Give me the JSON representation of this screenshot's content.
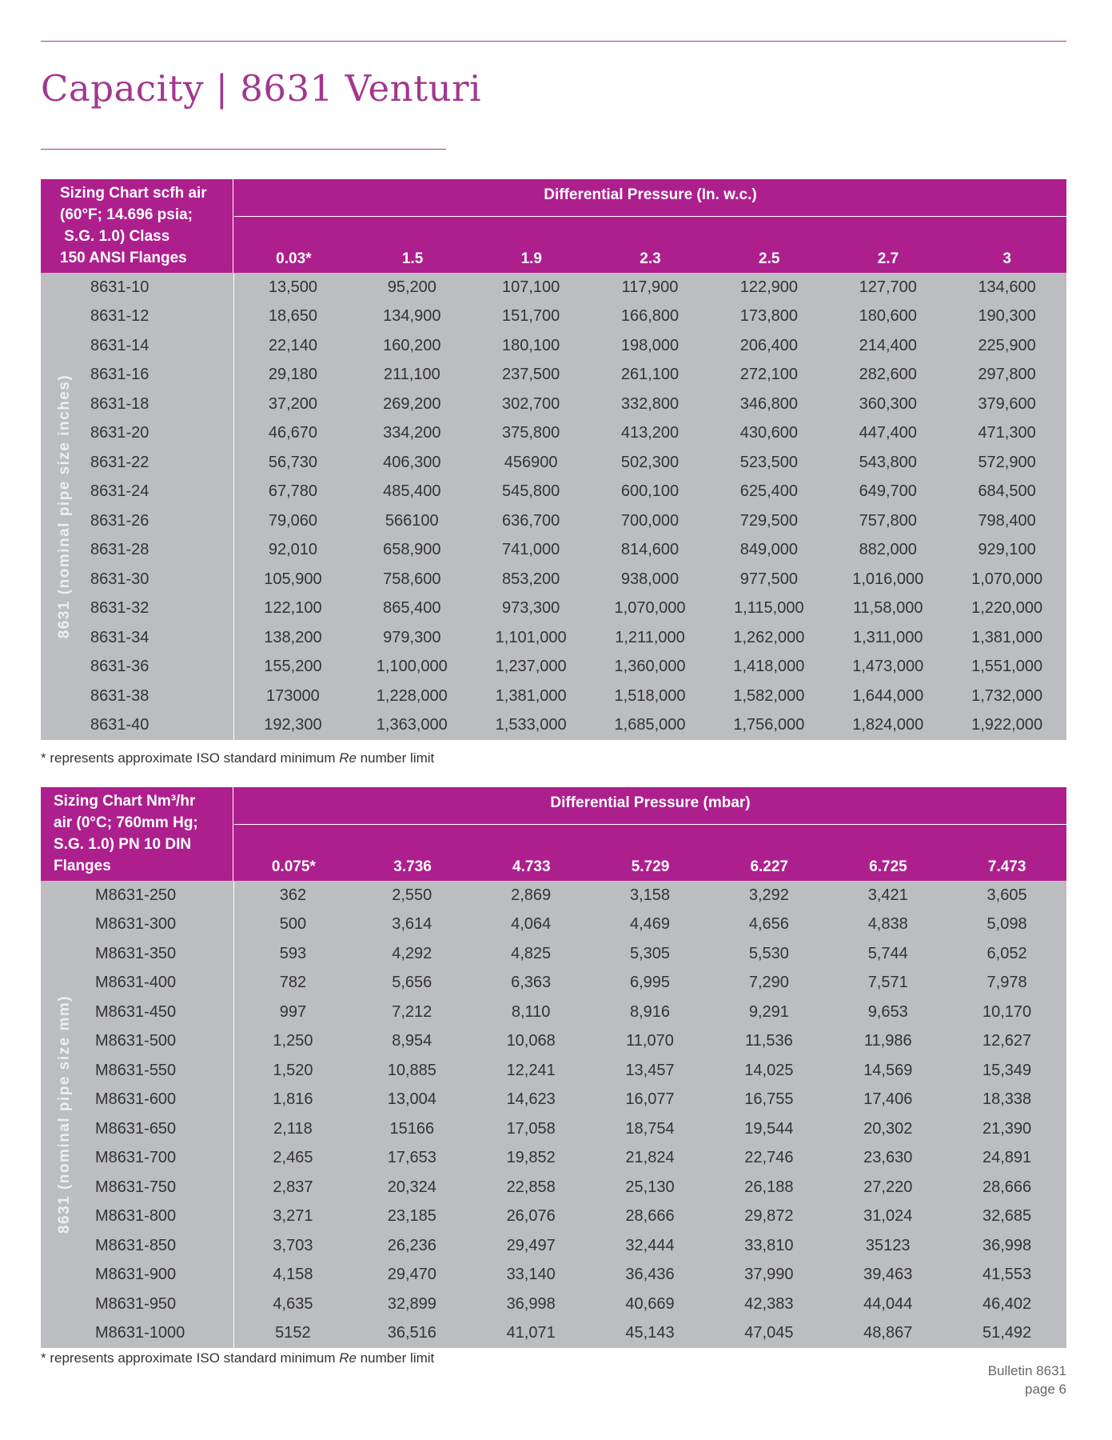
{
  "page": {
    "title": "Capacity | 8631 Venturi",
    "bulletin": "Bulletin 8631",
    "page_label": "page 6"
  },
  "table1": {
    "corner": "Sizing Chart scfh air\n(60°F; 14.696 psia;\n S.G. 1.0) Class\n150 ANSI Flanges",
    "group_header": "Differential Pressure (In. w.c.)",
    "side_label": "8631 (nominal pipe size inches)",
    "columns": [
      "0.03*",
      "1.5",
      "1.9",
      "2.3",
      "2.5",
      "2.7",
      "3"
    ],
    "rows": [
      {
        "model": "8631-10",
        "values": [
          "13,500",
          "95,200",
          "107,100",
          "117,900",
          "122,900",
          "127,700",
          "134,600"
        ]
      },
      {
        "model": "8631-12",
        "values": [
          "18,650",
          "134,900",
          "151,700",
          "166,800",
          "173,800",
          "180,600",
          "190,300"
        ]
      },
      {
        "model": "8631-14",
        "values": [
          "22,140",
          "160,200",
          "180,100",
          "198,000",
          "206,400",
          "214,400",
          "225,900"
        ]
      },
      {
        "model": "8631-16",
        "values": [
          "29,180",
          "211,100",
          "237,500",
          "261,100",
          "272,100",
          "282,600",
          "297,800"
        ]
      },
      {
        "model": "8631-18",
        "values": [
          "37,200",
          "269,200",
          "302,700",
          "332,800",
          "346,800",
          "360,300",
          "379,600"
        ]
      },
      {
        "model": "8631-20",
        "values": [
          "46,670",
          "334,200",
          "375,800",
          "413,200",
          "430,600",
          "447,400",
          "471,300"
        ]
      },
      {
        "model": "8631-22",
        "values": [
          "56,730",
          "406,300",
          "456900",
          "502,300",
          "523,500",
          "543,800",
          "572,900"
        ]
      },
      {
        "model": "8631-24",
        "values": [
          "67,780",
          "485,400",
          "545,800",
          "600,100",
          "625,400",
          "649,700",
          "684,500"
        ]
      },
      {
        "model": "8631-26",
        "values": [
          "79,060",
          "566100",
          "636,700",
          "700,000",
          "729,500",
          "757,800",
          "798,400"
        ]
      },
      {
        "model": "8631-28",
        "values": [
          "92,010",
          "658,900",
          "741,000",
          "814,600",
          "849,000",
          "882,000",
          "929,100"
        ]
      },
      {
        "model": "8631-30",
        "values": [
          "105,900",
          "758,600",
          "853,200",
          "938,000",
          "977,500",
          "1,016,000",
          "1,070,000"
        ]
      },
      {
        "model": "8631-32",
        "values": [
          "122,100",
          "865,400",
          "973,300",
          "1,070,000",
          "1,115,000",
          "11,58,000",
          "1,220,000"
        ]
      },
      {
        "model": "8631-34",
        "values": [
          "138,200",
          "979,300",
          "1,101,000",
          "1,211,000",
          "1,262,000",
          "1,311,000",
          "1,381,000"
        ]
      },
      {
        "model": "8631-36",
        "values": [
          "155,200",
          "1,100,000",
          "1,237,000",
          "1,360,000",
          "1,418,000",
          "1,473,000",
          "1,551,000"
        ]
      },
      {
        "model": "8631-38",
        "values": [
          "173000",
          "1,228,000",
          "1,381,000",
          "1,518,000",
          "1,582,000",
          "1,644,000",
          "1,732,000"
        ]
      },
      {
        "model": "8631-40",
        "values": [
          "192,300",
          "1,363,000",
          "1,533,000",
          "1,685,000",
          "1,756,000",
          "1,824,000",
          "1,922,000"
        ]
      }
    ],
    "footnote_pre": "* represents approximate ISO standard minimum ",
    "footnote_em": "Re",
    "footnote_post": " number limit"
  },
  "table2": {
    "corner": "Sizing Chart Nm³/hr\nair (0°C; 760mm Hg;\nS.G. 1.0) PN 10 DIN\nFlanges",
    "group_header": "Differential Pressure (mbar)",
    "side_label": "8631 (nominal pipe size mm)",
    "columns": [
      "0.075*",
      "3.736",
      "4.733",
      "5.729",
      "6.227",
      "6.725",
      "7.473"
    ],
    "rows": [
      {
        "model": "M8631-250",
        "values": [
          "362",
          "2,550",
          "2,869",
          "3,158",
          "3,292",
          "3,421",
          "3,605"
        ]
      },
      {
        "model": "M8631-300",
        "values": [
          "500",
          "3,614",
          "4,064",
          "4,469",
          "4,656",
          "4,838",
          "5,098"
        ]
      },
      {
        "model": "M8631-350",
        "values": [
          "593",
          "4,292",
          "4,825",
          "5,305",
          "5,530",
          "5,744",
          "6,052"
        ]
      },
      {
        "model": "M8631-400",
        "values": [
          "782",
          "5,656",
          "6,363",
          "6,995",
          "7,290",
          "7,571",
          "7,978"
        ]
      },
      {
        "model": "M8631-450",
        "values": [
          "997",
          "7,212",
          "8,110",
          "8,916",
          "9,291",
          "9,653",
          "10,170"
        ]
      },
      {
        "model": "M8631-500",
        "values": [
          "1,250",
          "8,954",
          "10,068",
          "11,070",
          "11,536",
          "11,986",
          "12,627"
        ]
      },
      {
        "model": "M8631-550",
        "values": [
          "1,520",
          "10,885",
          "12,241",
          "13,457",
          "14,025",
          "14,569",
          "15,349"
        ]
      },
      {
        "model": "M8631-600",
        "values": [
          "1,816",
          "13,004",
          "14,623",
          "16,077",
          "16,755",
          "17,406",
          "18,338"
        ]
      },
      {
        "model": "M8631-650",
        "values": [
          "2,118",
          "15166",
          "17,058",
          "18,754",
          "19,544",
          "20,302",
          "21,390"
        ]
      },
      {
        "model": "M8631-700",
        "values": [
          "2,465",
          "17,653",
          "19,852",
          "21,824",
          "22,746",
          "23,630",
          "24,891"
        ]
      },
      {
        "model": "M8631-750",
        "values": [
          "2,837",
          "20,324",
          "22,858",
          "25,130",
          "26,188",
          "27,220",
          "28,666"
        ]
      },
      {
        "model": "M8631-800",
        "values": [
          "3,271",
          "23,185",
          "26,076",
          "28,666",
          "29,872",
          "31,024",
          "32,685"
        ]
      },
      {
        "model": "M8631-850",
        "values": [
          "3,703",
          "26,236",
          "29,497",
          "32,444",
          "33,810",
          "35123",
          "36,998"
        ]
      },
      {
        "model": "M8631-900",
        "values": [
          "4,158",
          "29,470",
          "33,140",
          "36,436",
          "37,990",
          "39,463",
          "41,553"
        ]
      },
      {
        "model": "M8631-950",
        "values": [
          "4,635",
          "32,899",
          "36,998",
          "40,669",
          "42,383",
          "44,044",
          "46,402"
        ]
      },
      {
        "model": "M8631-1000",
        "values": [
          "5152",
          "36,516",
          "41,071",
          "45,143",
          "47,045",
          "48,867",
          "51,492"
        ]
      }
    ],
    "footnote_pre": "* represents approximate ISO standard minimum ",
    "footnote_em": "Re",
    "footnote_post": " number limit"
  }
}
